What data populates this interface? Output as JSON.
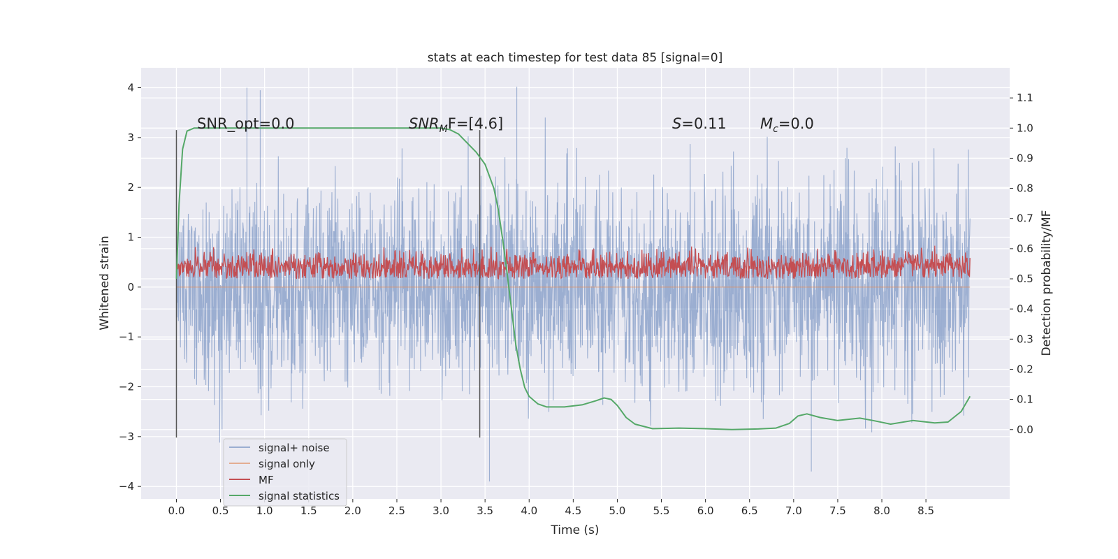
{
  "chart_data": {
    "type": "line",
    "title": "stats at each timestep for test data 85 [signal=0]",
    "xlabel": "Time (s)",
    "ylabel": "Whitened strain",
    "y2label": "Detection probability/MF",
    "xlim": [
      -0.4,
      9.45
    ],
    "ylim": [
      -4.25,
      4.4
    ],
    "y2lim": [
      -0.23,
      1.2
    ],
    "xticks": [
      "0.0",
      "0.5",
      "1.0",
      "1.5",
      "2.0",
      "2.5",
      "3.0",
      "3.5",
      "4.0",
      "4.5",
      "5.0",
      "5.5",
      "6.0",
      "6.5",
      "7.0",
      "7.5",
      "8.0",
      "8.5"
    ],
    "yticks": [
      "4",
      "3",
      "2",
      "1",
      "0",
      "−1",
      "−2",
      "−3",
      "−4"
    ],
    "y2ticks": [
      "1.1",
      "1.0",
      "0.9",
      "0.8",
      "0.7",
      "0.6",
      "0.5",
      "0.4",
      "0.3",
      "0.2",
      "0.1",
      "0.0"
    ],
    "vlines": [
      {
        "x": 0.0,
        "ymin": -3.02,
        "ymax": 3.15
      },
      {
        "x": 3.44,
        "ymin": -3.02,
        "ymax": 3.15
      }
    ],
    "annotations": {
      "snr_opt": "SNR_opt=0.0",
      "snr_mf_prefix": "SNR",
      "snr_mf_sub": "M",
      "snr_mf_suffix": "F=[4.6]",
      "s_prefix": "S",
      "s_suffix": "=0.11",
      "mc_prefix": "M",
      "mc_sub": "c",
      "mc_suffix": "=0.0"
    },
    "series": [
      {
        "name": "signal+ noise",
        "color": "#4c72b0",
        "t_range": [
          0.0,
          9.0
        ],
        "amplitude_typical": [
          -2.5,
          2.5
        ],
        "peaks": [
          [
            0.8,
            4.0
          ],
          [
            0.95,
            3.95
          ],
          [
            3.86,
            4.02
          ],
          [
            3.55,
            -3.9
          ],
          [
            7.2,
            -3.7
          ]
        ]
      },
      {
        "name": "signal only",
        "color": "#dd8452",
        "t_range": [
          0.0,
          9.0
        ],
        "values": "zero"
      },
      {
        "name": "MF",
        "color": "#c44e52",
        "t_range": [
          0.0,
          9.0
        ],
        "axis": "right",
        "band": [
          0.5,
          0.6
        ]
      },
      {
        "name": "signal statistics",
        "color": "#55a868",
        "axis": "right",
        "x": [
          0.0,
          0.03,
          0.07,
          0.12,
          0.2,
          0.3,
          0.5,
          1.0,
          2.0,
          3.0,
          3.1,
          3.2,
          3.3,
          3.4,
          3.5,
          3.6,
          3.65,
          3.7,
          3.75,
          3.8,
          3.85,
          3.9,
          3.95,
          4.0,
          4.1,
          4.2,
          4.4,
          4.6,
          4.75,
          4.85,
          4.93,
          5.0,
          5.1,
          5.2,
          5.4,
          5.7,
          6.0,
          6.3,
          6.6,
          6.8,
          6.95,
          7.05,
          7.15,
          7.3,
          7.5,
          7.75,
          7.9,
          8.1,
          8.35,
          8.6,
          8.75,
          8.9,
          9.0
        ],
        "y": [
          0.5,
          0.75,
          0.93,
          0.99,
          1.0,
          1.0,
          1.0,
          1.0,
          1.0,
          1.0,
          0.995,
          0.98,
          0.95,
          0.92,
          0.88,
          0.8,
          0.73,
          0.63,
          0.52,
          0.4,
          0.28,
          0.2,
          0.14,
          0.11,
          0.085,
          0.075,
          0.075,
          0.082,
          0.095,
          0.105,
          0.1,
          0.08,
          0.04,
          0.018,
          0.003,
          0.005,
          0.003,
          0.0,
          0.002,
          0.005,
          0.02,
          0.045,
          0.052,
          0.04,
          0.03,
          0.038,
          0.03,
          0.018,
          0.03,
          0.022,
          0.025,
          0.06,
          0.11
        ]
      }
    ],
    "legend": [
      "signal+ noise",
      "signal only",
      "MF",
      "signal statistics"
    ],
    "legend_position": "lower-left",
    "grid": true
  }
}
